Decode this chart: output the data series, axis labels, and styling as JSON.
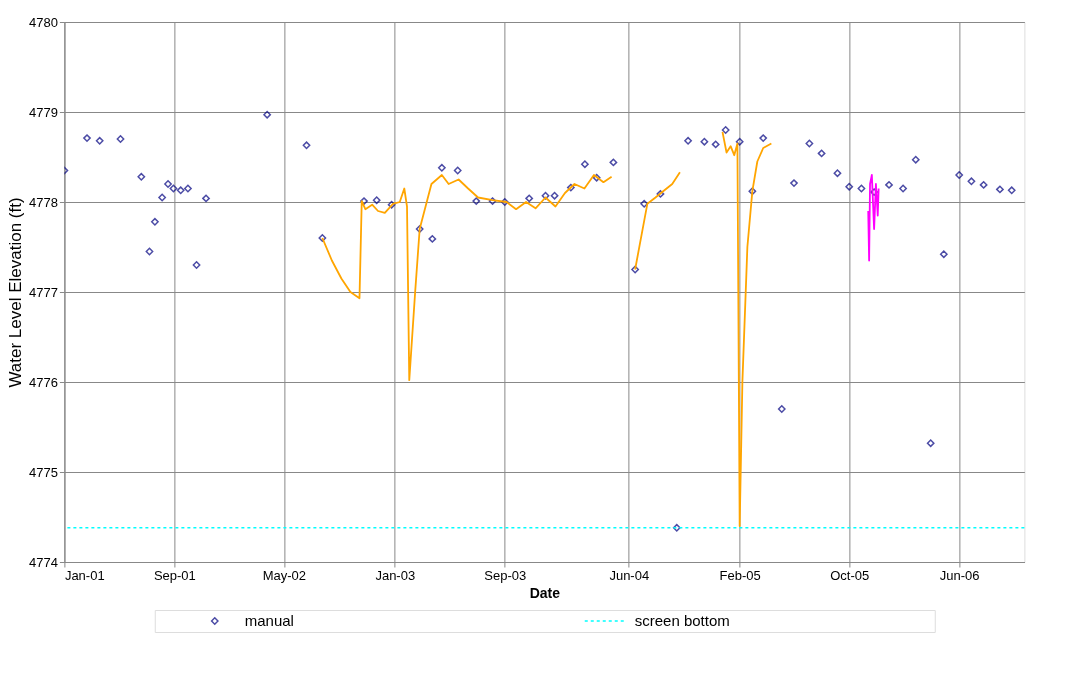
{
  "chart_data": {
    "type": "scatter",
    "xlabel": "Date",
    "ylabel": "Water Level Elevation (ft)",
    "xlim": [
      "2001-01-01",
      "2006-10-23"
    ],
    "ylim": [
      4774,
      4780
    ],
    "yticks": [
      4774,
      4775,
      4776,
      4777,
      4778,
      4779,
      4780
    ],
    "xticks": [
      {
        "value": "2001-01-01",
        "label": "Jan-01"
      },
      {
        "value": "2001-09-01",
        "label": "Sep-01"
      },
      {
        "value": "2002-05-01",
        "label": "May-02"
      },
      {
        "value": "2003-01-01",
        "label": "Jan-03"
      },
      {
        "value": "2003-09-01",
        "label": "Sep-03"
      },
      {
        "value": "2004-06-01",
        "label": "Jun-04"
      },
      {
        "value": "2005-02-01",
        "label": "Feb-05"
      },
      {
        "value": "2005-10-01",
        "label": "Oct-05"
      },
      {
        "value": "2006-06-01",
        "label": "Jun-06"
      }
    ],
    "grid": true,
    "legend": "bottom",
    "series": [
      {
        "name": "manual",
        "marker": "diamond",
        "color": "#000080",
        "x": [
          "2001-01-01",
          "2001-02-20",
          "2001-03-20",
          "2001-05-05",
          "2001-06-20",
          "2001-07-08",
          "2001-07-20",
          "2001-08-05",
          "2001-08-18",
          "2001-08-30",
          "2001-09-15",
          "2001-10-01",
          "2001-10-20",
          "2001-11-10",
          "2002-03-25",
          "2002-06-20",
          "2002-07-25",
          "2002-10-25",
          "2002-11-22",
          "2002-12-25",
          "2003-02-25",
          "2003-03-25",
          "2003-04-15",
          "2003-05-20",
          "2003-06-30",
          "2003-08-05",
          "2003-09-01",
          "2003-10-25",
          "2003-11-30",
          "2003-12-20",
          "2004-01-25",
          "2004-02-25",
          "2004-03-22",
          "2004-04-28",
          "2004-06-15",
          "2004-07-05",
          "2004-08-10",
          "2004-09-15",
          "2004-10-10",
          "2004-11-15",
          "2004-12-10",
          "2005-01-01",
          "2005-02-01",
          "2005-03-01",
          "2005-03-25",
          "2005-05-05",
          "2005-06-01",
          "2005-07-05",
          "2005-08-01",
          "2005-09-05",
          "2005-10-01",
          "2005-10-28",
          "2005-11-25",
          "2005-12-28",
          "2006-01-28",
          "2006-02-25",
          "2006-03-30",
          "2006-04-28",
          "2006-06-01",
          "2006-06-28",
          "2006-07-25",
          "2006-08-30",
          "2006-09-25"
        ],
        "values": [
          4778.35,
          4778.71,
          4778.68,
          4778.7,
          4778.28,
          4777.45,
          4777.78,
          4778.05,
          4778.2,
          4778.15,
          4778.13,
          4778.15,
          4777.3,
          4778.04,
          4778.97,
          4778.63,
          4777.6,
          4778.01,
          4778.02,
          4777.97,
          4777.7,
          4777.59,
          4778.38,
          4778.35,
          4778.01,
          4778.01,
          4778.0,
          4778.04,
          4778.07,
          4778.07,
          4778.16,
          4778.42,
          4778.27,
          4778.44,
          4777.25,
          4777.98,
          4778.09,
          4774.38,
          4778.68,
          4778.67,
          4778.64,
          4778.8,
          4778.67,
          4778.12,
          4778.71,
          4775.7,
          4778.21,
          4778.65,
          4778.54,
          4778.32,
          4778.17,
          4778.15,
          4778.11,
          4778.19,
          4778.15,
          4778.47,
          4775.32,
          4777.42,
          4778.3,
          4778.23,
          4778.19,
          4778.14,
          4778.13
        ]
      },
      {
        "type": "line",
        "line_style": "solid",
        "color": "#ffa500",
        "x": [
          "2002-07-25",
          "2002-08-15",
          "2002-09-05",
          "2002-09-25",
          "2002-10-15",
          "2002-10-20",
          "2002-10-28",
          "2002-11-12",
          "2002-11-25",
          "2002-12-10",
          "2002-12-28",
          "2003-01-12",
          "2003-01-22",
          "2003-01-28",
          "2003-02-02",
          "2003-02-15",
          "2003-02-25",
          "2003-03-10",
          "2003-03-23",
          "2003-04-15",
          "2003-04-30",
          "2003-05-22",
          "2003-06-12",
          "2003-07-04",
          "2003-08-05",
          "2003-09-05",
          "2003-09-26",
          "2003-10-18",
          "2003-11-08",
          "2003-11-30",
          "2003-12-22",
          "2004-01-12",
          "2004-02-02",
          "2004-02-24",
          "2004-03-16",
          "2004-04-06",
          "2004-04-24",
          "2004-05-20",
          "2004-06-15",
          "2004-07-12",
          "2004-07-30",
          "2004-08-16",
          "2004-09-05",
          "2004-09-22",
          "2004-11-20",
          "2004-12-25",
          "2005-01-03",
          "2005-01-12",
          "2005-01-20",
          "2005-01-27",
          "2005-02-01",
          "2005-02-07",
          "2005-02-18",
          "2005-03-01",
          "2005-03-12",
          "2005-03-25",
          "2005-04-12"
        ],
        "values": [
          4777.6,
          4777.35,
          4777.15,
          4777.0,
          4776.93,
          4778.01,
          4777.92,
          4777.97,
          4777.9,
          4777.88,
          4777.98,
          4778.0,
          4778.15,
          4777.95,
          4776.02,
          4777.0,
          4777.7,
          4777.95,
          4778.2,
          4778.3,
          4778.2,
          4778.25,
          4778.15,
          4778.05,
          4778.02,
          4778.0,
          4777.92,
          4778.0,
          4777.93,
          4778.05,
          4777.95,
          4778.1,
          4778.2,
          4778.15,
          4778.3,
          4778.22,
          4778.28,
          null,
          4777.25,
          4777.98,
          4778.05,
          4778.12,
          4778.2,
          4778.33,
          null,
          4778.78,
          4778.55,
          4778.62,
          4778.52,
          4778.65,
          4774.4,
          4776.0,
          4777.5,
          4778.12,
          4778.45,
          4778.6,
          4778.65
        ]
      },
      {
        "type": "line",
        "line_style": "solid",
        "color": "#ff00ff",
        "x": [
          "2005-11-12",
          "2005-11-14",
          "2005-11-16",
          "2005-11-20",
          "2005-11-25",
          "2005-11-29",
          "2005-12-03",
          "2005-12-05"
        ],
        "values": [
          4777.9,
          4777.35,
          4778.2,
          4778.3,
          4777.7,
          4778.2,
          4777.85,
          4778.15
        ]
      }
    ],
    "ref_lines": [
      {
        "axis": "y",
        "value": 4774.38,
        "label": "screen bottom",
        "color": "#00ffff",
        "line_style": "dotted"
      }
    ]
  }
}
